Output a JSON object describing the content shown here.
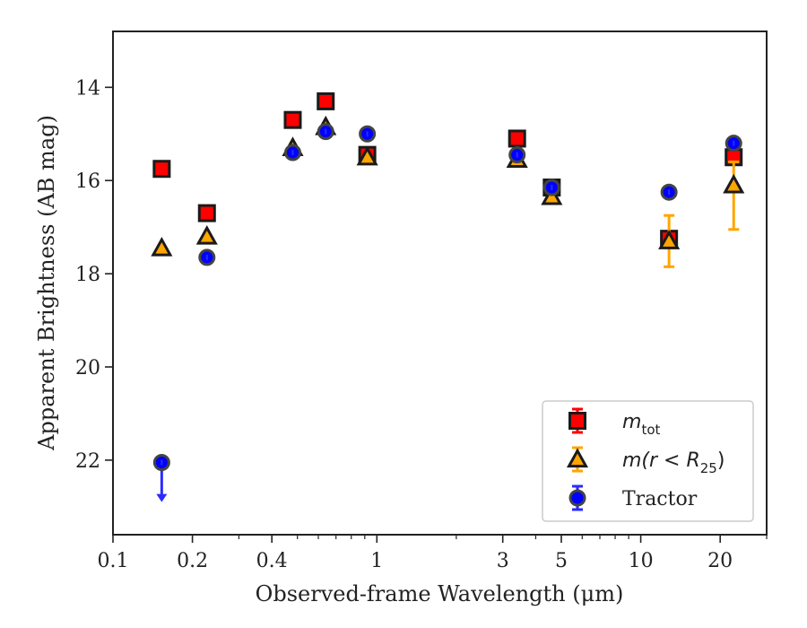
{
  "chart_data": {
    "type": "scatter",
    "title": "",
    "xlabel": "Observed-frame Wavelength (μm)",
    "ylabel": "Apparent Brightness (AB mag)",
    "xscale": "log",
    "xlim": [
      0.1,
      30
    ],
    "ylim": [
      23.6,
      12.8
    ],
    "y_inverted": true,
    "xticks": [
      {
        "value": 0.1,
        "label": "0.1"
      },
      {
        "value": 0.2,
        "label": "0.2"
      },
      {
        "value": 0.4,
        "label": "0.4"
      },
      {
        "value": 1,
        "label": "1"
      },
      {
        "value": 3,
        "label": "3"
      },
      {
        "value": 5,
        "label": "5"
      },
      {
        "value": 10,
        "label": "10"
      },
      {
        "value": 20,
        "label": "20"
      }
    ],
    "yticks": [
      {
        "value": 14,
        "label": "14"
      },
      {
        "value": 16,
        "label": "16"
      },
      {
        "value": 18,
        "label": "18"
      },
      {
        "value": 20,
        "label": "20"
      },
      {
        "value": 22,
        "label": "22"
      }
    ],
    "grid": false,
    "legend_position": "lower-right",
    "series": [
      {
        "key": "mtot",
        "label_main": "m",
        "label_sub": "tot",
        "marker": "square",
        "color": "#ff0000",
        "errcolor": "#ff0000",
        "points": [
          {
            "x": 0.153,
            "y": 15.75
          },
          {
            "x": 0.227,
            "y": 16.7
          },
          {
            "x": 0.48,
            "y": 14.7
          },
          {
            "x": 0.64,
            "y": 14.3
          },
          {
            "x": 0.92,
            "y": 15.45
          },
          {
            "x": 3.4,
            "y": 15.1
          },
          {
            "x": 4.6,
            "y": 16.15
          },
          {
            "x": 12.8,
            "y": 17.25
          },
          {
            "x": 22.5,
            "y": 15.5
          }
        ]
      },
      {
        "key": "mr25",
        "label_main": "m(r < R",
        "label_sub": "25",
        "label_tail": ")",
        "marker": "triangle",
        "color": "#ffa500",
        "errcolor": "#ffa500",
        "points": [
          {
            "x": 0.153,
            "y": 17.45
          },
          {
            "x": 0.227,
            "y": 17.2
          },
          {
            "x": 0.48,
            "y": 15.3
          },
          {
            "x": 0.64,
            "y": 14.85
          },
          {
            "x": 0.92,
            "y": 15.5
          },
          {
            "x": 3.4,
            "y": 15.55
          },
          {
            "x": 4.6,
            "y": 16.35
          },
          {
            "x": 12.8,
            "y": 17.3,
            "err_lo": 0.55,
            "err_hi": 0.55
          },
          {
            "x": 22.5,
            "y": 16.1,
            "err_lo": 0.95,
            "err_hi": 0.5
          }
        ]
      },
      {
        "key": "tractor",
        "label_main": "Tractor",
        "marker": "circle",
        "color": "#0000ff",
        "errcolor": "#2b2bff",
        "points": [
          {
            "x": 0.153,
            "y": 22.05,
            "upper_limit": true,
            "arrow_to": 22.9
          },
          {
            "x": 0.227,
            "y": 17.65
          },
          {
            "x": 0.48,
            "y": 15.4
          },
          {
            "x": 0.64,
            "y": 14.95
          },
          {
            "x": 0.92,
            "y": 15.0
          },
          {
            "x": 3.4,
            "y": 15.45
          },
          {
            "x": 4.6,
            "y": 16.15
          },
          {
            "x": 12.8,
            "y": 16.25
          },
          {
            "x": 22.5,
            "y": 15.2
          }
        ]
      }
    ]
  }
}
